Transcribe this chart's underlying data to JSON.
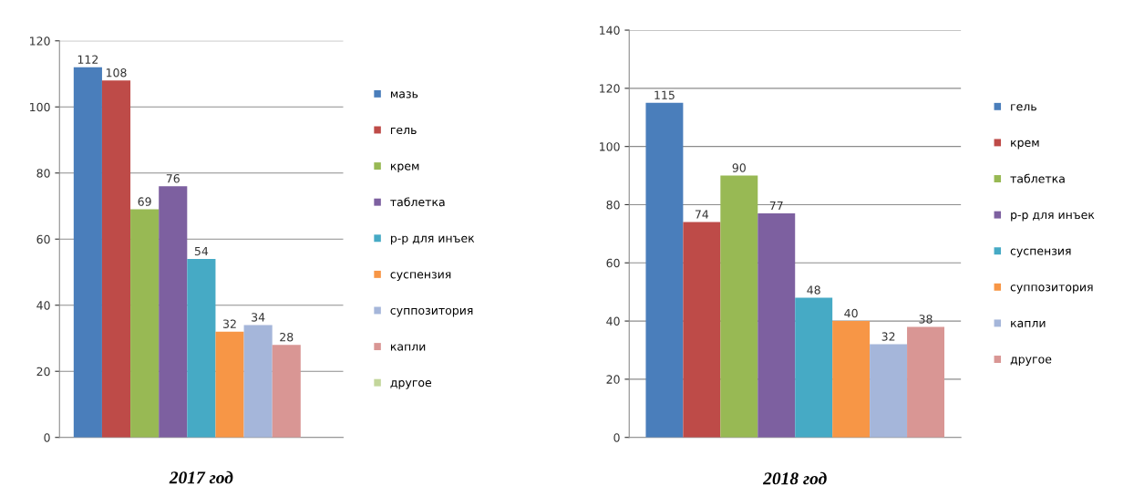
{
  "chart_data": [
    {
      "type": "bar",
      "title": "2017 год",
      "categories": [
        null
      ],
      "ylim": [
        0,
        120
      ],
      "yticks": [
        0,
        20,
        40,
        60,
        80,
        100,
        120
      ],
      "grid": "y",
      "legend": "right",
      "data_labels": true,
      "tick_labels": "y",
      "series": [
        {
          "name": "мазь",
          "color": "#4a7ebb",
          "values": [
            112
          ]
        },
        {
          "name": "гель",
          "color": "#be4b48",
          "values": [
            108
          ]
        },
        {
          "name": "крем",
          "color": "#98b954",
          "values": [
            69
          ]
        },
        {
          "name": "таблетка",
          "color": "#7d60a0",
          "values": [
            76
          ]
        },
        {
          "name": "р-р для инъек",
          "color": "#46aac5",
          "values": [
            54
          ]
        },
        {
          "name": "суспензия",
          "color": "#f79646",
          "values": [
            32
          ]
        },
        {
          "name": "суппозитория",
          "color": "#a5b6da",
          "values": [
            34
          ]
        },
        {
          "name": "капли",
          "color": "#d99694",
          "values": [
            28
          ]
        },
        {
          "name": "другое",
          "color": "#c3d69b",
          "values": [
            null
          ]
        }
      ]
    },
    {
      "type": "bar",
      "title": "2018 год",
      "categories": [
        null
      ],
      "ylim": [
        0,
        140
      ],
      "yticks": [
        0,
        20,
        40,
        60,
        80,
        100,
        120,
        140
      ],
      "grid": "y",
      "legend": "right",
      "data_labels": true,
      "tick_labels": "y",
      "series": [
        {
          "name": "гель",
          "color": "#4a7ebb",
          "values": [
            115
          ]
        },
        {
          "name": "крем",
          "color": "#be4b48",
          "values": [
            74
          ]
        },
        {
          "name": "таблетка",
          "color": "#98b954",
          "values": [
            90
          ]
        },
        {
          "name": "р-р для инъек",
          "color": "#7d60a0",
          "values": [
            77
          ]
        },
        {
          "name": "суспензия",
          "color": "#46aac5",
          "values": [
            48
          ]
        },
        {
          "name": "суппозитория",
          "color": "#f79646",
          "values": [
            40
          ]
        },
        {
          "name": "капли",
          "color": "#a5b6da",
          "values": [
            32
          ]
        },
        {
          "name": "другое",
          "color": "#d99694",
          "values": [
            38
          ]
        }
      ]
    }
  ]
}
